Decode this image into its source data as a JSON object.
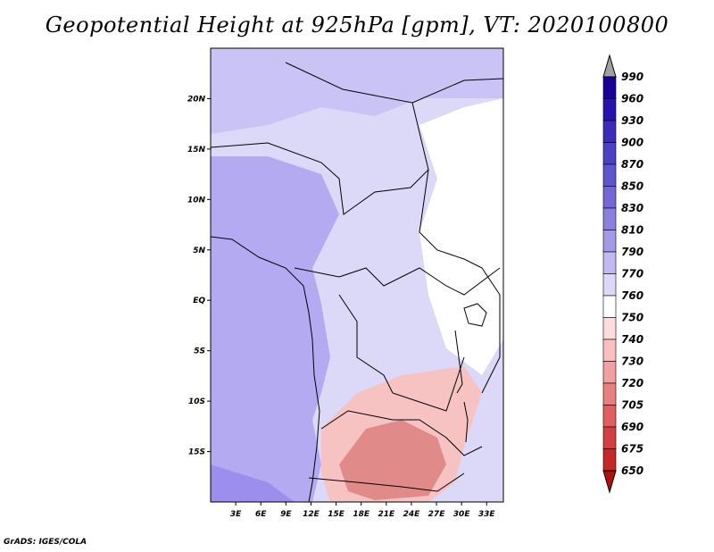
{
  "title": "Geopotential Height at 925hPa [gpm], VT: 2020100800",
  "credit": "GrADS: IGES/COLA",
  "map": {
    "lon_ticks": [
      "3E",
      "6E",
      "9E",
      "12E",
      "15E",
      "18E",
      "21E",
      "24E",
      "27E",
      "30E",
      "33E"
    ],
    "lat_ticks": [
      "20N",
      "15N",
      "10N",
      "5N",
      "EQ",
      "5S",
      "10S",
      "15S"
    ],
    "lon_range": [
      0,
      35
    ],
    "lat_range": [
      -20,
      25
    ]
  },
  "colorbar": {
    "levels": [
      "990",
      "960",
      "930",
      "900",
      "870",
      "850",
      "830",
      "810",
      "790",
      "770",
      "760",
      "750",
      "740",
      "730",
      "720",
      "705",
      "690",
      "675",
      "650"
    ],
    "colors": [
      "#160096",
      "#2814aa",
      "#3a2bb8",
      "#4c40c4",
      "#5e56ce",
      "#7468d6",
      "#8a80de",
      "#a29ae6",
      "#c0baf0",
      "#dcd8f8",
      "#ffffff",
      "#fcdcdc",
      "#f8c0c0",
      "#f0a0a0",
      "#e88080",
      "#e06060",
      "#d44040",
      "#c42828",
      "#b01010"
    ],
    "top_color": "#a0a0a0"
  },
  "regions": [
    {
      "name": "western-ocean-band",
      "color": "#b4aaf2"
    },
    {
      "name": "southwest-ocean",
      "color": "#9c8eec"
    },
    {
      "name": "sahara-north",
      "color": "#cac4f6"
    },
    {
      "name": "central-plateau",
      "color": "#dcd8f8"
    },
    {
      "name": "east-africa-high",
      "color": "#ffffff"
    },
    {
      "name": "southern-low",
      "color": "#f6c2c2"
    },
    {
      "name": "kalahari-low",
      "color": "#e08a8a"
    }
  ]
}
